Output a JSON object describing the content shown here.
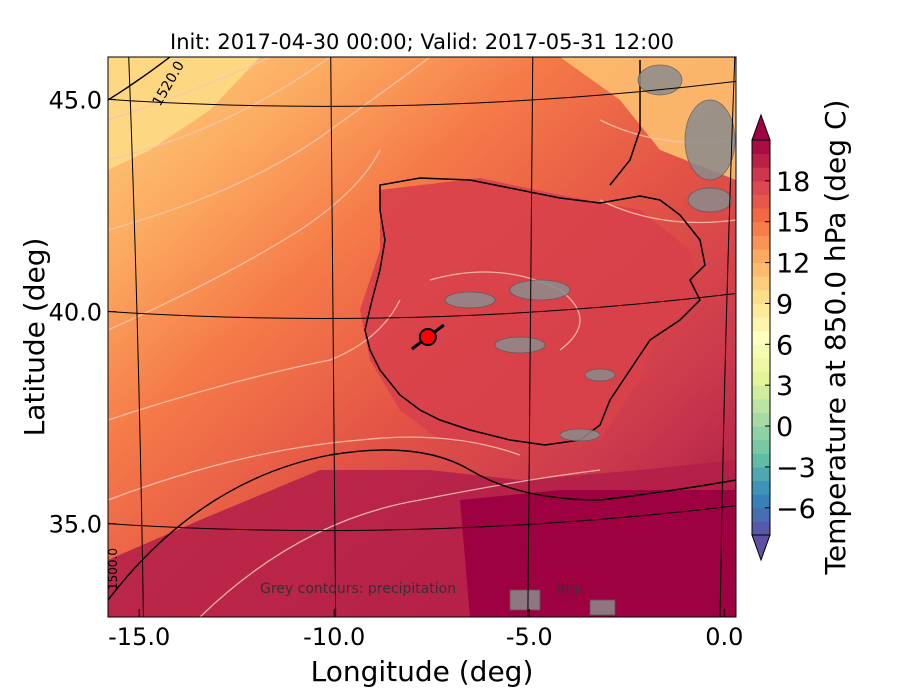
{
  "chart_data": {
    "type": "contour-map",
    "title": "Init: 2017-04-30 00:00; Valid: 2017-05-31 12:00",
    "xlabel": "Longitude (deg)",
    "ylabel": "Latitude (deg)",
    "xlim": [
      -15.8,
      0.3
    ],
    "ylim": [
      32.8,
      46.0
    ],
    "x_ticks": [
      {
        "value": -15.0,
        "label": "-15.0"
      },
      {
        "value": -10.0,
        "label": "-10.0"
      },
      {
        "value": -5.0,
        "label": "-5.0"
      },
      {
        "value": 0.0,
        "label": "0.0"
      }
    ],
    "y_ticks": [
      {
        "value": 35.0,
        "label": "35.0"
      },
      {
        "value": 40.0,
        "label": "40.0"
      },
      {
        "value": 45.0,
        "label": "45.0"
      }
    ],
    "colorbar": {
      "label": "Temperature at 850.0 hPa (deg C)",
      "min": -8,
      "max": 21,
      "extend": "both",
      "colormap": "Spectral_r",
      "tick_labels": [
        {
          "value": -6,
          "label": "−6"
        },
        {
          "value": -3,
          "label": "−3"
        },
        {
          "value": 0,
          "label": "0"
        },
        {
          "value": 3,
          "label": "3"
        },
        {
          "value": 6,
          "label": "6"
        },
        {
          "value": 9,
          "label": "9"
        },
        {
          "value": 12,
          "label": "12"
        },
        {
          "value": 15,
          "label": "15"
        },
        {
          "value": 18,
          "label": "18"
        }
      ]
    },
    "geopotential_contour_labels": [
      "1520.0",
      "1500.0"
    ],
    "annotation": "Grey contours: precipitation",
    "annotation_suffix": "mm",
    "marker": {
      "lon": -7.6,
      "lat": 39.4,
      "color": "#ff0000"
    }
  }
}
